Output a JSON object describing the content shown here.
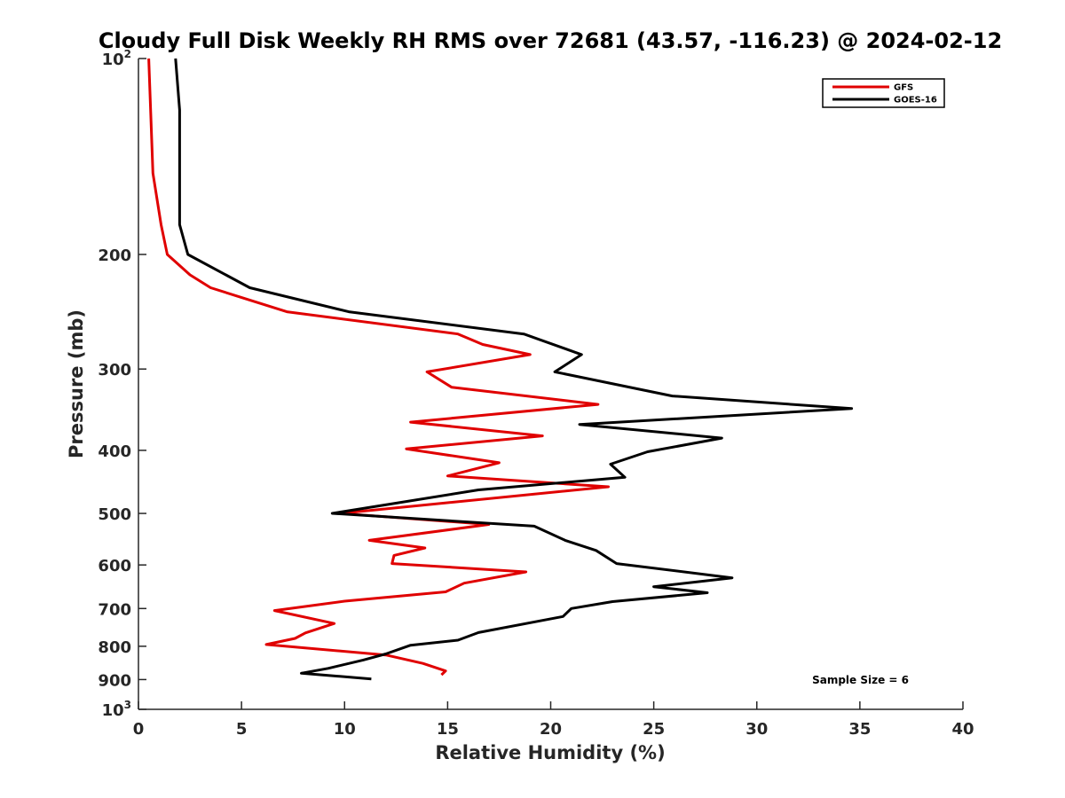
{
  "chart_data": {
    "type": "line",
    "title": "Cloudy Full Disk Weekly RH RMS over 72681 (43.57, -116.23) @ 2024-02-12",
    "xlabel": "Relative Humidity (%)",
    "ylabel": "Pressure (mb)",
    "xlim": [
      0,
      40
    ],
    "ylim": [
      100,
      1000
    ],
    "y_scale": "log",
    "y_reversed": true,
    "x_ticks": [
      "0",
      "5",
      "10",
      "15",
      "20",
      "25",
      "30",
      "35",
      "40"
    ],
    "y_ticks": [
      {
        "value": 100,
        "label": "10",
        "sup": "2"
      },
      {
        "value": 200,
        "label": "200"
      },
      {
        "value": 300,
        "label": "300"
      },
      {
        "value": 400,
        "label": "400"
      },
      {
        "value": 500,
        "label": "500"
      },
      {
        "value": 600,
        "label": "600"
      },
      {
        "value": 700,
        "label": "700"
      },
      {
        "value": 800,
        "label": "800"
      },
      {
        "value": 900,
        "label": "900"
      },
      {
        "value": 1000,
        "label": "10",
        "sup": "3"
      }
    ],
    "grid": false,
    "legend_position": "top-right",
    "annotation": "Sample Size = 6",
    "series": [
      {
        "name": "GFS",
        "color": "#e00000",
        "points": [
          [
            0.5,
            100
          ],
          [
            0.7,
            150
          ],
          [
            1.1,
            180
          ],
          [
            1.4,
            200
          ],
          [
            2.5,
            215
          ],
          [
            3.5,
            225
          ],
          [
            5.4,
            235
          ],
          [
            7.2,
            245
          ],
          [
            15.5,
            265
          ],
          [
            16.7,
            275
          ],
          [
            19.0,
            285
          ],
          [
            14.0,
            303
          ],
          [
            15.2,
            320
          ],
          [
            22.3,
            340
          ],
          [
            13.2,
            362
          ],
          [
            19.6,
            380
          ],
          [
            13.0,
            398
          ],
          [
            17.5,
            418
          ],
          [
            15.0,
            438
          ],
          [
            22.8,
            455
          ],
          [
            9.8,
            500
          ],
          [
            17.0,
            520
          ],
          [
            11.2,
            550
          ],
          [
            13.9,
            565
          ],
          [
            12.4,
            580
          ],
          [
            12.3,
            597
          ],
          [
            18.8,
            615
          ],
          [
            15.8,
            640
          ],
          [
            14.9,
            660
          ],
          [
            10.0,
            682
          ],
          [
            6.6,
            705
          ],
          [
            9.5,
            738
          ],
          [
            8.1,
            763
          ],
          [
            7.6,
            778
          ],
          [
            6.2,
            795
          ],
          [
            12.0,
            825
          ],
          [
            13.8,
            850
          ],
          [
            14.9,
            873
          ],
          [
            14.7,
            885
          ]
        ]
      },
      {
        "name": "GOES-16",
        "color": "#000000",
        "points": [
          [
            1.8,
            100
          ],
          [
            2.0,
            120
          ],
          [
            2.0,
            180
          ],
          [
            2.4,
            200
          ],
          [
            5.4,
            225
          ],
          [
            10.2,
            245
          ],
          [
            18.7,
            265
          ],
          [
            21.5,
            285
          ],
          [
            20.2,
            303
          ],
          [
            25.9,
            330
          ],
          [
            34.6,
            345
          ],
          [
            21.4,
            365
          ],
          [
            28.3,
            383
          ],
          [
            24.7,
            402
          ],
          [
            22.9,
            420
          ],
          [
            23.6,
            440
          ],
          [
            16.5,
            460
          ],
          [
            9.4,
            500
          ],
          [
            19.2,
            523
          ],
          [
            20.7,
            550
          ],
          [
            22.2,
            570
          ],
          [
            23.2,
            597
          ],
          [
            28.8,
            628
          ],
          [
            25.0,
            648
          ],
          [
            27.6,
            662
          ],
          [
            23.0,
            683
          ],
          [
            21.0,
            700
          ],
          [
            20.6,
            720
          ],
          [
            16.5,
            762
          ],
          [
            15.5,
            783
          ],
          [
            13.2,
            797
          ],
          [
            12.0,
            822
          ],
          [
            10.9,
            840
          ],
          [
            9.2,
            865
          ],
          [
            7.9,
            880
          ],
          [
            11.3,
            898
          ]
        ]
      }
    ]
  }
}
